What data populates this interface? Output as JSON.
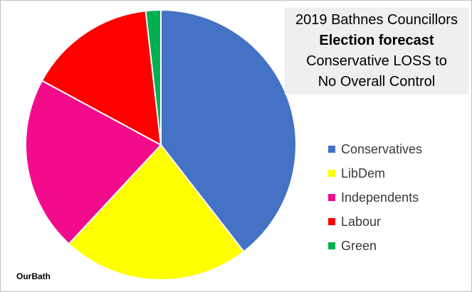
{
  "chart_data": {
    "type": "pie",
    "title_lines": [
      "2019 Bathnes Councillors",
      "Election forecast",
      "Conservative LOSS to",
      "No Overall Control"
    ],
    "legend_position": "right",
    "slices": [
      {
        "name": "Conservatives",
        "value": 39.5,
        "color": "#4472C4"
      },
      {
        "name": "LibDem",
        "value": 22.4,
        "color": "#FFFF00"
      },
      {
        "name": "Independents",
        "value": 21.0,
        "color": "#F20C8C"
      },
      {
        "name": "Labour",
        "value": 15.3,
        "color": "#FF0000"
      },
      {
        "name": "Green",
        "value": 1.8,
        "color": "#00B050"
      }
    ]
  },
  "credit": "OurBath"
}
